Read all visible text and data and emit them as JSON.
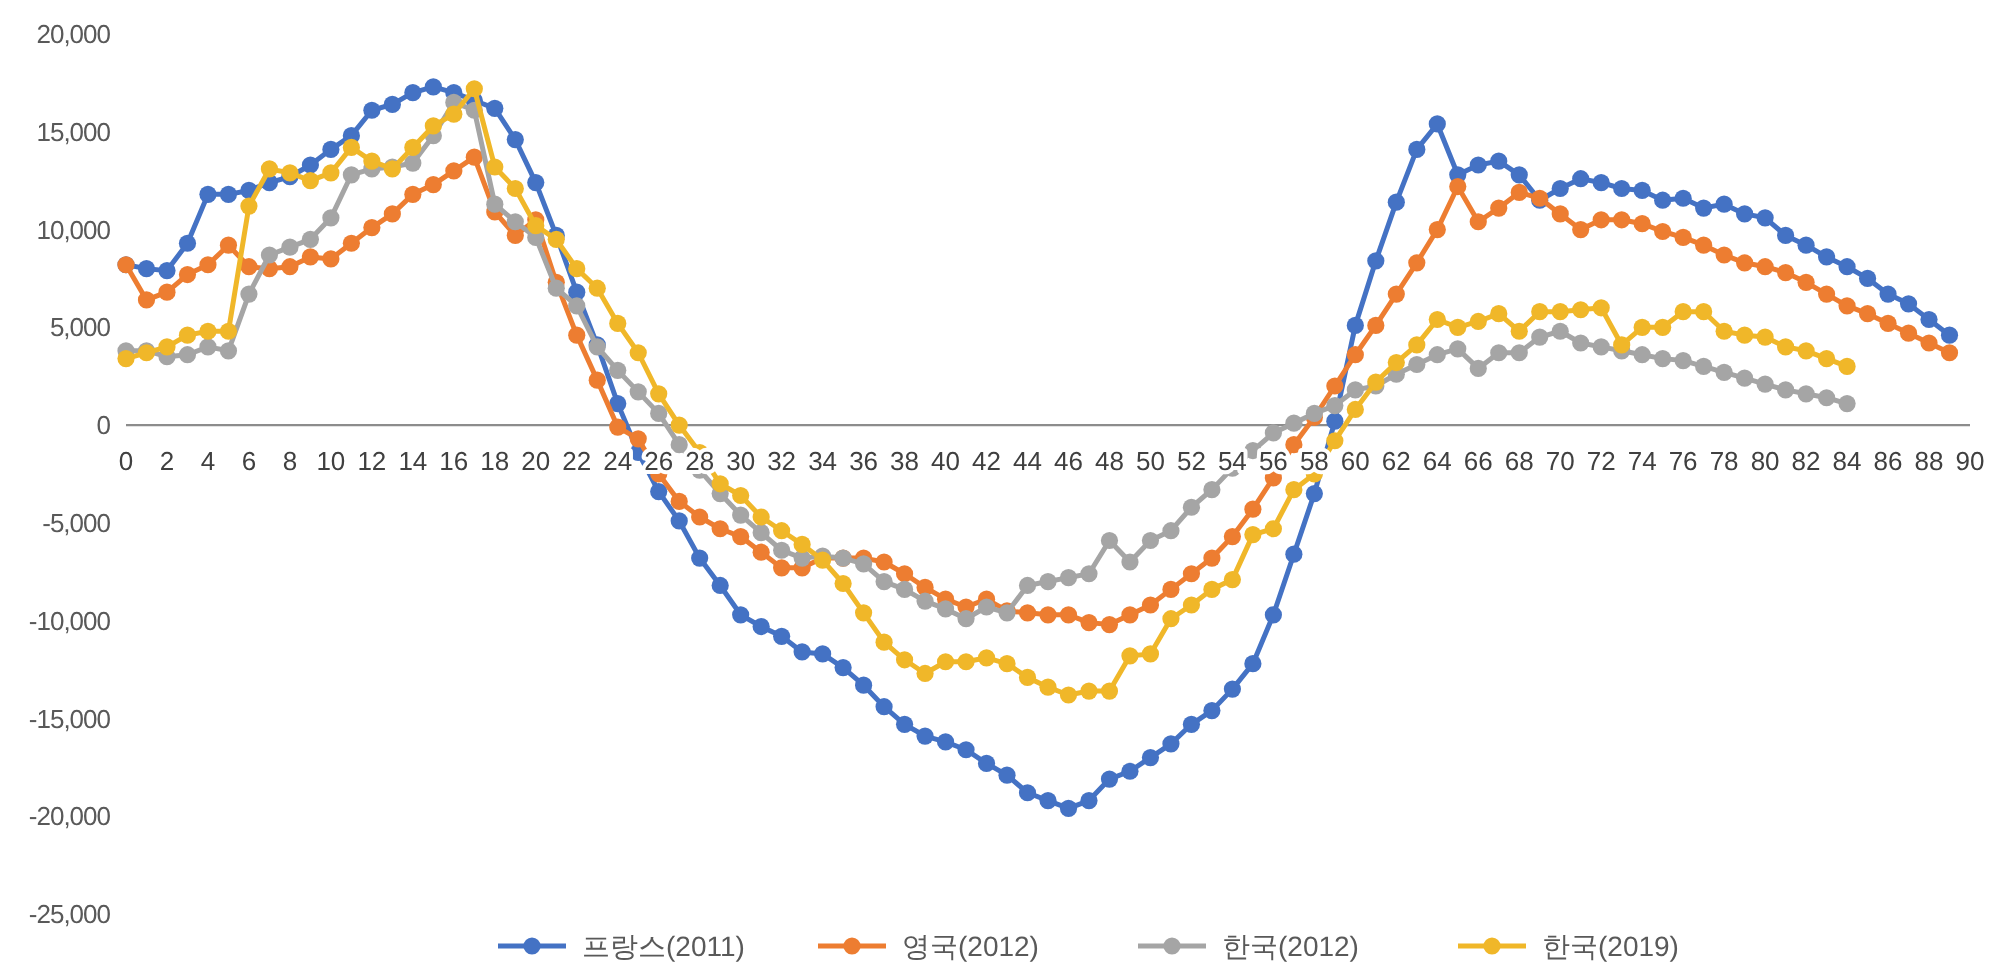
{
  "chart_data": {
    "type": "line",
    "x": [
      0,
      1,
      2,
      3,
      4,
      5,
      6,
      7,
      8,
      9,
      10,
      11,
      12,
      13,
      14,
      15,
      16,
      17,
      18,
      19,
      20,
      21,
      22,
      23,
      24,
      25,
      26,
      27,
      28,
      29,
      30,
      31,
      32,
      33,
      34,
      35,
      36,
      37,
      38,
      39,
      40,
      41,
      42,
      43,
      44,
      45,
      46,
      47,
      48,
      49,
      50,
      51,
      52,
      53,
      54,
      55,
      56,
      57,
      58,
      59,
      60,
      61,
      62,
      63,
      64,
      65,
      66,
      67,
      68,
      69,
      70,
      71,
      72,
      73,
      74,
      75,
      76,
      77,
      78,
      79,
      80,
      81,
      82,
      83,
      84,
      85,
      86,
      87,
      88,
      89
    ],
    "series": [
      {
        "name": "프랑스(2011)",
        "color": "#4472c4",
        "values": [
          8200,
          8000,
          7900,
          9300,
          11800,
          11800,
          12000,
          12400,
          12700,
          13300,
          14100,
          14800,
          16100,
          16400,
          17000,
          17300,
          17000,
          16600,
          16200,
          14600,
          12400,
          9700,
          6800,
          4100,
          1100,
          -1400,
          -3400,
          -4900,
          -6800,
          -8200,
          -9700,
          -10300,
          -10800,
          -11600,
          -11700,
          -12400,
          -13300,
          -14400,
          -15300,
          -15900,
          -16200,
          -16600,
          -17300,
          -17900,
          -18800,
          -19200,
          -19600,
          -19200,
          -18100,
          -17700,
          -17000,
          -16300,
          -15300,
          -14600,
          -13500,
          -12200,
          -9700,
          -6600,
          -3500,
          200,
          5100,
          8400,
          11400,
          14100,
          15400,
          12800,
          13300,
          13500,
          12800,
          11500,
          12100,
          12600,
          12400,
          12100,
          12000,
          11500,
          11600,
          11100,
          11300,
          10800,
          10600,
          9700,
          9200,
          8600,
          8100,
          7500,
          6700,
          6200,
          5400,
          4600
        ]
      },
      {
        "name": "영국(2012)",
        "color": "#ed7d31",
        "values": [
          8200,
          6400,
          6800,
          7700,
          8200,
          9200,
          8100,
          8000,
          8100,
          8600,
          8500,
          9300,
          10100,
          10800,
          11800,
          12300,
          13000,
          13700,
          10900,
          9700,
          10500,
          7300,
          4600,
          2300,
          -100,
          -700,
          -2500,
          -3900,
          -4700,
          -5300,
          -5700,
          -6500,
          -7300,
          -7300,
          -6800,
          -6800,
          -6800,
          -7000,
          -7600,
          -8300,
          -8900,
          -9300,
          -8900,
          -9500,
          -9600,
          -9700,
          -9700,
          -10100,
          -10200,
          -9700,
          -9200,
          -8400,
          -7600,
          -6800,
          -5700,
          -4300,
          -2700,
          -1000,
          400,
          2000,
          3600,
          5100,
          6700,
          8300,
          10000,
          12200,
          10400,
          11100,
          11900,
          11600,
          10800,
          10000,
          10500,
          10500,
          10300,
          9900,
          9600,
          9200,
          8700,
          8300,
          8100,
          7800,
          7300,
          6700,
          6100,
          5700,
          5200,
          4700,
          4200,
          3700
        ]
      },
      {
        "name": "한국(2012)",
        "color": "#a5a5a5",
        "values": [
          3800,
          3800,
          3500,
          3600,
          4000,
          3800,
          6700,
          8700,
          9100,
          9500,
          10600,
          12800,
          13100,
          13200,
          13400,
          14800,
          16500,
          16100,
          11300,
          10400,
          9600,
          7000,
          6100,
          4000,
          2800,
          1700,
          600,
          -1000,
          -2300,
          -3500,
          -4600,
          -5500,
          -6400,
          -6800,
          -6700,
          -6800,
          -7100,
          -8000,
          -8400,
          -9000,
          -9400,
          -9900,
          -9300,
          -9600,
          -8200,
          -8000,
          -7800,
          -7600,
          -5900,
          -7000,
          -5900,
          -5400,
          -4200,
          -3300,
          -2200,
          -1300,
          -400,
          100,
          600,
          1000,
          1800,
          2000,
          2600,
          3100,
          3600,
          3900,
          2900,
          3700,
          3700,
          4500,
          4800,
          4200,
          4000,
          3800,
          3600,
          3400,
          3300,
          3000,
          2700,
          2400,
          2100,
          1800,
          1600,
          1400,
          1100,
          null,
          null,
          null,
          null,
          null
        ]
      },
      {
        "name": "한국(2019)",
        "color": "#f0b729",
        "values": [
          3400,
          3700,
          4000,
          4600,
          4800,
          4800,
          11200,
          13100,
          12900,
          12500,
          12900,
          14200,
          13500,
          13100,
          14200,
          15300,
          15900,
          17200,
          13200,
          12100,
          10200,
          9500,
          8000,
          7000,
          5200,
          3700,
          1600,
          0,
          -1400,
          -3000,
          -3600,
          -4700,
          -5400,
          -6100,
          -6900,
          -8100,
          -9600,
          -11100,
          -12000,
          -12700,
          -12100,
          -12100,
          -11900,
          -12200,
          -12900,
          -13400,
          -13800,
          -13600,
          -13600,
          -11800,
          -11700,
          -9900,
          -9200,
          -8400,
          -7900,
          -5600,
          -5300,
          -3300,
          -2500,
          -800,
          800,
          2200,
          3200,
          4100,
          5400,
          5000,
          5300,
          5700,
          4800,
          5800,
          5800,
          5900,
          6000,
          4100,
          5000,
          5000,
          5800,
          5800,
          4800,
          4600,
          4500,
          4000,
          3800,
          3400,
          3000,
          null,
          null,
          null,
          null,
          null
        ]
      }
    ],
    "xlim": [
      0,
      90
    ],
    "xticks": [
      0,
      2,
      4,
      6,
      8,
      10,
      12,
      14,
      16,
      18,
      20,
      22,
      24,
      26,
      28,
      30,
      32,
      34,
      36,
      38,
      40,
      42,
      44,
      46,
      48,
      50,
      52,
      54,
      56,
      58,
      60,
      62,
      64,
      66,
      68,
      70,
      72,
      74,
      76,
      78,
      80,
      82,
      84,
      86,
      88,
      90
    ],
    "ylim": [
      -25000,
      20000
    ],
    "yticks": [
      {
        "value": 20000,
        "label": "20,000"
      },
      {
        "value": 15000,
        "label": "15,000"
      },
      {
        "value": 10000,
        "label": "10,000"
      },
      {
        "value": 5000,
        "label": "5,000"
      },
      0,
      {
        "value": -5000,
        "label": "-5,000"
      },
      {
        "value": -10000,
        "label": "-10,000"
      },
      {
        "value": -15000,
        "label": "-15,000"
      },
      {
        "value": -20000,
        "label": "-20,000"
      },
      {
        "value": -25000,
        "label": "-25,000"
      }
    ],
    "grid": false,
    "legend": "bottom",
    "marker": "circle",
    "line_style": "solid"
  }
}
